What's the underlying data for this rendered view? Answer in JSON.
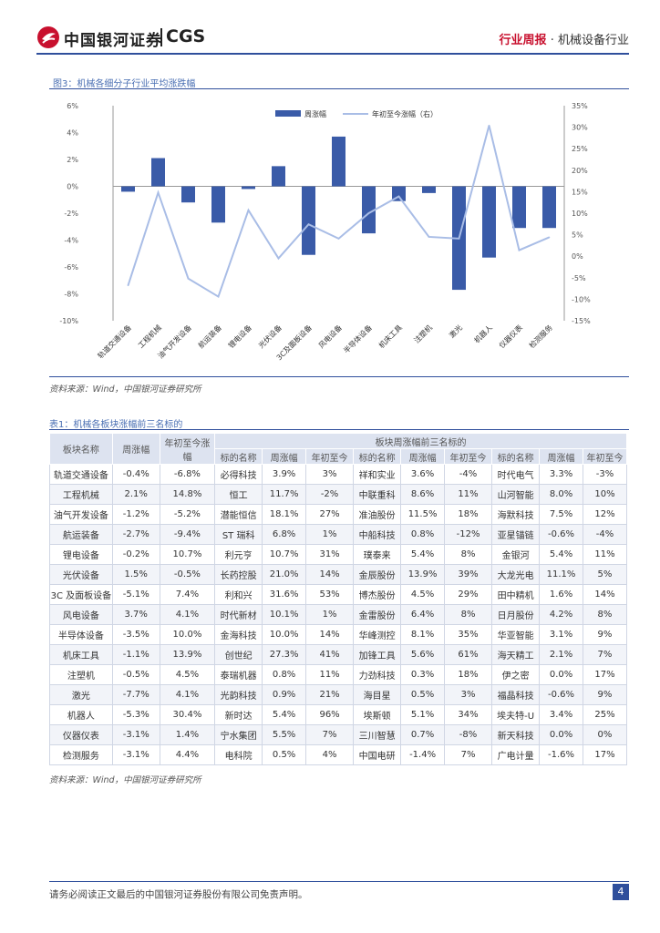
{
  "header": {
    "logo_cn": "中国银河证券",
    "logo_en": "CGS",
    "report_type": "行业周报",
    "separator": "·",
    "industry": "机械设备行业"
  },
  "figure": {
    "title": "图3：机械各细分子行业平均涨跌幅",
    "source": "资料来源：Wind，中国银河证券研究所"
  },
  "colors": {
    "bar": "#3a5ba8",
    "line": "#a9bde6",
    "accent_red": "#c8102e",
    "brand_blue": "#2f4f9c"
  },
  "chart_data": {
    "type": "bar+line",
    "categories": [
      "轨道交通设备",
      "工程机械",
      "油气开发设备",
      "航运装备",
      "锂电设备",
      "光伏设备",
      "3C及面板设备",
      "风电设备",
      "半导体设备",
      "机床工具",
      "注塑机",
      "激光",
      "机器人",
      "仪器仪表",
      "检测服务"
    ],
    "series": [
      {
        "name": "周涨幅",
        "type": "bar",
        "axis": "left",
        "values": [
          -0.4,
          2.1,
          -1.2,
          -2.7,
          -0.2,
          1.5,
          -5.1,
          3.7,
          -3.5,
          -1.1,
          -0.5,
          -7.7,
          -5.3,
          -3.1,
          -3.1
        ]
      },
      {
        "name": "年初至今涨幅（右）",
        "type": "line",
        "axis": "right",
        "values": [
          -6.8,
          14.8,
          -5.2,
          -9.4,
          10.7,
          -0.5,
          7.4,
          4.1,
          10.0,
          13.9,
          4.5,
          4.1,
          30.4,
          1.4,
          4.4
        ]
      }
    ],
    "left_axis": {
      "ylim": [
        -10,
        6
      ],
      "ticks": [
        "6%",
        "4%",
        "2%",
        "0%",
        "-2%",
        "-4%",
        "-6%",
        "-8%",
        "-10%"
      ]
    },
    "right_axis": {
      "ylim": [
        -15,
        35
      ],
      "ticks": [
        "35%",
        "30%",
        "25%",
        "20%",
        "15%",
        "10%",
        "5%",
        "0%",
        "-5%",
        "-10%",
        "-15%"
      ]
    },
    "legend": [
      "周涨幅",
      "年初至今涨幅（右）"
    ],
    "legend_position": "top-center"
  },
  "table": {
    "title": "表1：机械各板块涨幅前三名标的",
    "header_group": "板块周涨幅前三名标的",
    "columns": [
      "板块名称",
      "周涨幅",
      "年初至今涨幅",
      "标的名称",
      "周涨幅",
      "年初至今",
      "标的名称",
      "周涨幅",
      "年初至今",
      "标的名称",
      "周涨幅",
      "年初至今"
    ],
    "rows": [
      [
        "轨道交通设备",
        "-0.4%",
        "-6.8%",
        "必得科技",
        "3.9%",
        "3%",
        "祥和实业",
        "3.6%",
        "-4%",
        "时代电气",
        "3.3%",
        "-3%"
      ],
      [
        "工程机械",
        "2.1%",
        "14.8%",
        "恒工",
        "11.7%",
        "-2%",
        "中联重科",
        "8.6%",
        "11%",
        "山河智能",
        "8.0%",
        "10%"
      ],
      [
        "油气开发设备",
        "-1.2%",
        "-5.2%",
        "潜能恒信",
        "18.1%",
        "27%",
        "准油股份",
        "11.5%",
        "18%",
        "海默科技",
        "7.5%",
        "12%"
      ],
      [
        "航运装备",
        "-2.7%",
        "-9.4%",
        "ST 瑞科",
        "6.8%",
        "1%",
        "中船科技",
        "0.8%",
        "-12%",
        "亚星锚链",
        "-0.6%",
        "-4%"
      ],
      [
        "锂电设备",
        "-0.2%",
        "10.7%",
        "利元亨",
        "10.7%",
        "31%",
        "璞泰来",
        "5.4%",
        "8%",
        "金银河",
        "5.4%",
        "11%"
      ],
      [
        "光伏设备",
        "1.5%",
        "-0.5%",
        "长药控股",
        "21.0%",
        "14%",
        "金辰股份",
        "13.9%",
        "39%",
        "大龙光电",
        "11.1%",
        "5%"
      ],
      [
        "3C 及面板设备",
        "-5.1%",
        "7.4%",
        "利和兴",
        "31.6%",
        "53%",
        "博杰股份",
        "4.5%",
        "29%",
        "田中精机",
        "1.6%",
        "14%"
      ],
      [
        "风电设备",
        "3.7%",
        "4.1%",
        "时代新材",
        "10.1%",
        "1%",
        "金雷股份",
        "6.4%",
        "8%",
        "日月股份",
        "4.2%",
        "8%"
      ],
      [
        "半导体设备",
        "-3.5%",
        "10.0%",
        "金海科技",
        "10.0%",
        "14%",
        "华峰测控",
        "8.1%",
        "35%",
        "华亚智能",
        "3.1%",
        "9%"
      ],
      [
        "机床工具",
        "-1.1%",
        "13.9%",
        "创世纪",
        "27.3%",
        "41%",
        "加锋工具",
        "5.6%",
        "61%",
        "海天精工",
        "2.1%",
        "7%"
      ],
      [
        "注塑机",
        "-0.5%",
        "4.5%",
        "泰瑞机器",
        "0.8%",
        "11%",
        "力劲科技",
        "0.3%",
        "18%",
        "伊之密",
        "0.0%",
        "17%"
      ],
      [
        "激光",
        "-7.7%",
        "4.1%",
        "光韵科技",
        "0.9%",
        "21%",
        "海目星",
        "0.5%",
        "3%",
        "福晶科技",
        "-0.6%",
        "9%"
      ],
      [
        "机器人",
        "-5.3%",
        "30.4%",
        "新时达",
        "5.4%",
        "96%",
        "埃斯顿",
        "5.1%",
        "34%",
        "埃夫特-U",
        "3.4%",
        "25%"
      ],
      [
        "仪器仪表",
        "-3.1%",
        "1.4%",
        "宁水集团",
        "5.5%",
        "7%",
        "三川智慧",
        "0.7%",
        "-8%",
        "新天科技",
        "0.0%",
        "0%"
      ],
      [
        "检测服务",
        "-3.1%",
        "4.4%",
        "电科院",
        "0.5%",
        "4%",
        "中国电研",
        "-1.4%",
        "7%",
        "广电计量",
        "-1.6%",
        "17%"
      ]
    ],
    "source": "资料来源：Wind，中国银河证券研究所"
  },
  "footer": {
    "disclaimer": "请务必阅读正文最后的中国银河证券股份有限公司免责声明。",
    "page_number": "4"
  }
}
